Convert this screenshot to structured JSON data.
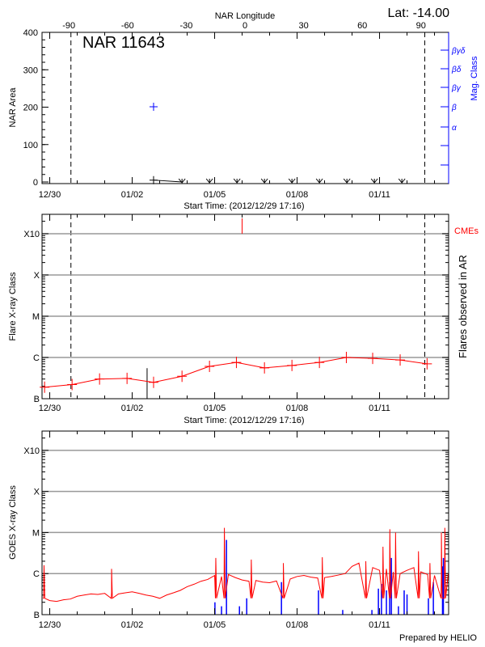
{
  "colors": {
    "axis": "#000000",
    "grid": "#999999",
    "flare": "#ff0000",
    "mag": "#0000ff",
    "goes_events": "#0000ff",
    "cme": "#ff0000"
  },
  "header": {
    "lat_label": "Lat: -14.00",
    "region": "NAR 11643",
    "top_axis_label": "NAR Longitude"
  },
  "footer": {
    "credit": "Prepared by HELIO"
  },
  "x_axis": {
    "start": "2012-12-29T17:16",
    "end": "2013-01-13T12:30",
    "tick_labels": [
      "12/30",
      "01/02",
      "01/05",
      "01/08",
      "01/11"
    ],
    "tick_dates": [
      "2012-12-30T00:00",
      "2013-01-02T00:00",
      "2013-01-05T00:00",
      "2013-01-08T00:00",
      "2013-01-11T00:00"
    ],
    "label": "Start Time: (2012/12/29 17:16)"
  },
  "chart_data": [
    {
      "type": "scatter",
      "title": "NAR 11643",
      "ylabel": "NAR Area",
      "ylim": [
        0,
        400
      ],
      "y_ticks": [
        "0",
        "100",
        "200",
        "300",
        "400"
      ],
      "longitude_axis": {
        "label": "NAR Longitude",
        "ticks": [
          "-90",
          "-60",
          "-30",
          "0",
          "30",
          "60",
          "90"
        ],
        "range": [
          -90,
          90
        ],
        "limb_lines": [
          "2012-12-30T18:30",
          "2013-01-12T15:30"
        ]
      },
      "area_points": [
        {
          "t": "2013-01-02T18:40",
          "area": 5
        },
        {
          "t": "2013-01-03T19:30",
          "area": 0
        }
      ],
      "below_threshold_markers": [
        "2013-01-03T19:30",
        "2013-01-04T19:30",
        "2013-01-05T19:30",
        "2013-01-06T19:30",
        "2013-01-07T19:30",
        "2013-01-08T19:30",
        "2013-01-09T19:30",
        "2013-01-10T19:30",
        "2013-01-11T19:30"
      ],
      "mag_axis": {
        "label": "Mag. Class",
        "classes": [
          "α",
          "β",
          "βγ",
          "βδ",
          "βγδ"
        ]
      },
      "mag_points": [
        {
          "t": "2013-01-02T18:40",
          "class": "β"
        }
      ]
    },
    {
      "type": "line",
      "ylabel": "Flare X-ray Class",
      "right_label": "Flares observed in AR",
      "cme_label": "CMEs",
      "y_ticks": [
        "B",
        "C",
        "M",
        "X",
        "X10"
      ],
      "grid": true,
      "series": [
        {
          "name": "",
          "points": [
            {
              "t": "2012-12-29T19:30",
              "c": "B1.9"
            },
            {
              "t": "2012-12-30T19:30",
              "c": "B2.2"
            },
            {
              "t": "2012-12-31T19:30",
              "c": "B3.0"
            },
            {
              "t": "2013-01-01T19:30",
              "c": "B3.1"
            },
            {
              "t": "2013-01-02T18:40",
              "c": "B2.5"
            },
            {
              "t": "2013-01-03T19:30",
              "c": "B3.5"
            },
            {
              "t": "2013-01-04T19:30",
              "c": "B6.1"
            },
            {
              "t": "2013-01-05T19:00",
              "c": "B7.6"
            },
            {
              "t": "2013-01-06T19:30",
              "c": "B5.6"
            },
            {
              "t": "2013-01-07T19:30",
              "c": "B6.4"
            },
            {
              "t": "2013-01-08T19:30",
              "c": "B7.6"
            },
            {
              "t": "2013-01-09T19:00",
              "c": "C1.0"
            },
            {
              "t": "2013-01-10T18:00",
              "c": "B9.5"
            },
            {
              "t": "2013-01-11T18:00",
              "c": "B8.7"
            },
            {
              "t": "2013-01-12T17:30",
              "c": "B7.0"
            }
          ]
        }
      ],
      "event_line": {
        "t": "2013-01-02T13:00",
        "c": "B5.5"
      },
      "cmes": [
        "2013-01-06T00:00"
      ],
      "limb_lines": [
        "2012-12-30T18:30",
        "2013-01-12T15:30"
      ]
    },
    {
      "type": "line",
      "ylabel": "GOES X-ray Class",
      "y_ticks": [
        "B",
        "C",
        "M",
        "X",
        "X10"
      ],
      "grid": true,
      "flux_start": "2012-12-29T18:00",
      "flux_step_hours": 6,
      "flux": [
        "B2.5",
        "B2.2",
        "B2.1",
        "B2.3",
        "B2.4",
        "B2.8",
        "B3.0",
        "B3.2",
        "B3.1",
        "B3.3",
        "B3.5",
        "B3.2",
        "B3.4",
        "B3.6",
        "B3.3",
        "B3.0",
        "B2.8",
        "B2.5",
        "B3.0",
        "B3.4",
        "B3.9",
        "B4.8",
        "B5.5",
        "B6.5",
        "B7.2",
        "B9.0",
        "B8.5",
        "B9.5",
        "B8.0",
        "B7.0",
        "B6.5",
        "B6.8",
        "B6.2",
        "B6.0",
        "B6.6",
        "B8.0",
        "B7.4",
        "B8.5",
        "B9.0",
        "B8.2",
        "B7.8",
        "B8.0",
        "B8.5",
        "B9.2",
        "C1.0",
        "C1.5",
        "C1.8",
        "C1.6",
        "C1.4",
        "C1.2",
        "C1.3",
        "C1.1",
        "C1.0",
        "C1.2",
        "C1.4",
        "C1.1",
        "B9.5",
        "B9.0",
        "B9.5",
        "C1.0",
        "C1.2"
      ],
      "flux_peaks": [
        {
          "t": "2012-12-29T19:00",
          "c": "C1.6"
        },
        {
          "t": "2013-01-01T06:00",
          "c": "C1.3"
        },
        {
          "t": "2013-01-05T01:00",
          "c": "C2.4"
        },
        {
          "t": "2013-01-05T08:30",
          "c": "M1.3"
        },
        {
          "t": "2013-01-06T08:00",
          "c": "C2.2"
        },
        {
          "t": "2013-01-07T12:00",
          "c": "C1.8"
        },
        {
          "t": "2013-01-08T22:00",
          "c": "C2.5"
        },
        {
          "t": "2013-01-10T12:00",
          "c": "C2.0"
        },
        {
          "t": "2013-01-11T03:00",
          "c": "C4.5"
        },
        {
          "t": "2013-01-11T09:00",
          "c": "M1.2"
        },
        {
          "t": "2013-01-11T14:00",
          "c": "M1.0"
        },
        {
          "t": "2013-01-12T10:00",
          "c": "C3.5"
        },
        {
          "t": "2013-01-12T20:00",
          "c": "C1.8"
        },
        {
          "t": "2013-01-13T06:00",
          "c": "M1.0"
        },
        {
          "t": "2013-01-13T09:00",
          "c": "M1.3"
        }
      ],
      "events": [
        {
          "t": "2013-01-05T00:15",
          "c": "B2.0"
        },
        {
          "t": "2013-01-05T06:00",
          "c": "B1.6"
        },
        {
          "t": "2013-01-05T10:20",
          "c": "C6.6"
        },
        {
          "t": "2013-01-05T21:40",
          "c": "B1.6"
        },
        {
          "t": "2013-01-06T04:00",
          "c": "B2.5"
        },
        {
          "t": "2013-01-07T10:20",
          "c": "B6.2"
        },
        {
          "t": "2013-01-08T18:40",
          "c": "B3.9"
        },
        {
          "t": "2013-01-09T15:50",
          "c": "B1.3"
        },
        {
          "t": "2013-01-10T17:20",
          "c": "B1.3"
        },
        {
          "t": "2013-01-10T23:00",
          "c": "B4.3"
        },
        {
          "t": "2013-01-11T01:40",
          "c": "B5.6"
        },
        {
          "t": "2013-01-11T06:00",
          "c": "B3.9"
        },
        {
          "t": "2013-01-11T08:50",
          "c": "B6.2"
        },
        {
          "t": "2013-01-11T10:20",
          "c": "C2.4"
        },
        {
          "t": "2013-01-11T16:30",
          "c": "B1.6"
        },
        {
          "t": "2013-01-11T21:30",
          "c": "B3.9"
        },
        {
          "t": "2013-01-12T00:00",
          "c": "B3.1"
        },
        {
          "t": "2013-01-12T18:40",
          "c": "B2.5"
        },
        {
          "t": "2013-01-12T23:00",
          "c": "B6.2"
        },
        {
          "t": "2013-01-13T07:00",
          "c": "C1.5"
        },
        {
          "t": "2013-01-13T07:45",
          "c": "C2.4"
        }
      ]
    }
  ]
}
